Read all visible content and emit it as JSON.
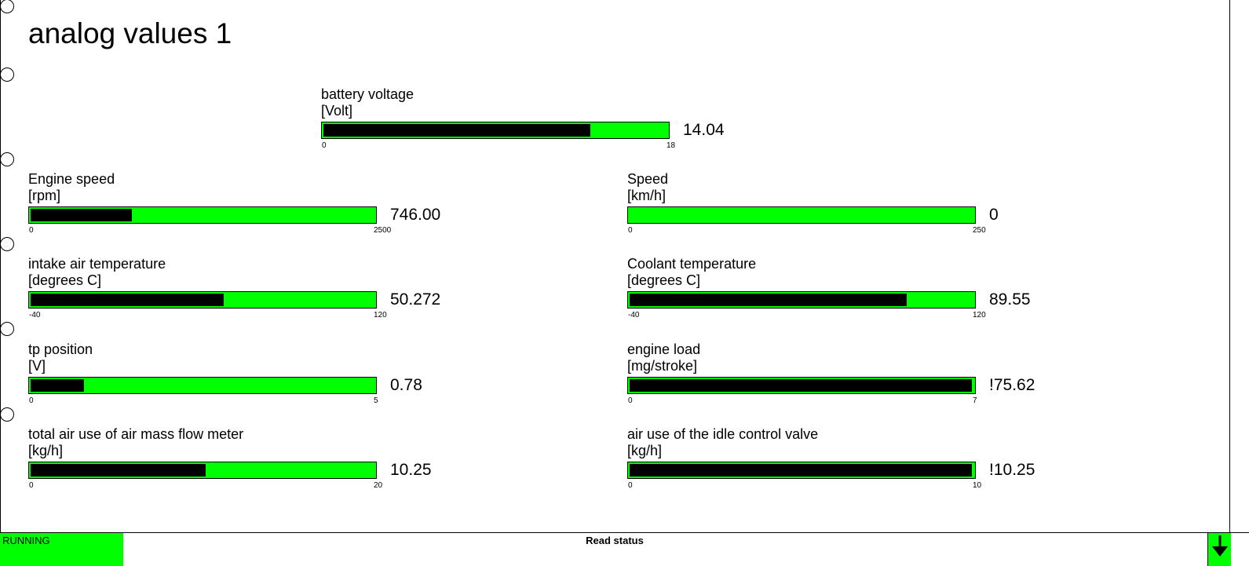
{
  "page": {
    "title": "analog values 1"
  },
  "colors": {
    "bar": "#00ff00",
    "fill": "#000000",
    "background": "#ffffff"
  },
  "icons": {
    "binder_holes": "circle-hole",
    "status_arrow": "arrow-down-icon"
  },
  "gauges": [
    {
      "id": "battery-voltage",
      "label": "battery voltage",
      "unit": "[Volt]",
      "min": "0",
      "max": "18",
      "value": "14.04",
      "fill_fraction": 0.78
    },
    {
      "id": "engine-speed",
      "label": "Engine speed",
      "unit": "[rpm]",
      "min": "0",
      "max": "2500",
      "value": "746.00",
      "fill_fraction": 0.295
    },
    {
      "id": "speed",
      "label": "Speed",
      "unit": "[km/h]",
      "min": "0",
      "max": "250",
      "value": "0",
      "fill_fraction": 0
    },
    {
      "id": "intake-air-temperature",
      "label": "intake air temperature",
      "unit": "[degrees C]",
      "min": "-40",
      "max": "120",
      "value": "50.272",
      "fill_fraction": 0.565
    },
    {
      "id": "coolant-temperature",
      "label": "Coolant temperature",
      "unit": "[degrees C]",
      "min": "-40",
      "max": "120",
      "value": "89.55",
      "fill_fraction": 0.81
    },
    {
      "id": "tp-position",
      "label": "tp position",
      "unit": "[V]",
      "min": "0",
      "max": "5",
      "value": "0.78",
      "fill_fraction": 0.155
    },
    {
      "id": "engine-load",
      "label": "engine load",
      "unit": "[mg/stroke]",
      "min": "0",
      "max": "7",
      "value": "!75.62",
      "fill_fraction": 1.0
    },
    {
      "id": "total-air-use",
      "label": "total air use of air mass flow meter",
      "unit": "[kg/h]",
      "min": "0",
      "max": "20",
      "value": "10.25",
      "fill_fraction": 0.512
    },
    {
      "id": "idle-valve-air-use",
      "label": "air use of the idle control valve",
      "unit": "[kg/h]",
      "min": "0",
      "max": "10",
      "value": "!10.25",
      "fill_fraction": 1.0
    }
  ],
  "status": {
    "state": "RUNNING",
    "message": "Read status"
  }
}
